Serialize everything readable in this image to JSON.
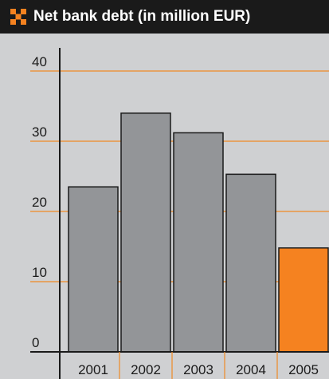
{
  "header": {
    "title": "Net bank debt (in million EUR)",
    "icon": "grid-logo-icon"
  },
  "colors": {
    "header_bg": "#1a1a1a",
    "plot_bg": "#cfd0d2",
    "grid": "#f08a24",
    "bar_default": "#939598",
    "bar_highlight": "#f58220",
    "logo": "#f58220"
  },
  "chart_data": {
    "type": "bar",
    "title": "Net bank debt (in million EUR)",
    "categories": [
      "2001",
      "2002",
      "2003",
      "2004",
      "2005"
    ],
    "values": [
      23.5,
      34,
      31.2,
      25.3,
      14.8
    ],
    "highlight": [
      "2005"
    ],
    "ylim": [
      0,
      40
    ],
    "yticks": [
      0,
      10,
      20,
      30,
      40
    ],
    "grid": true,
    "xlabel": "",
    "ylabel": ""
  }
}
